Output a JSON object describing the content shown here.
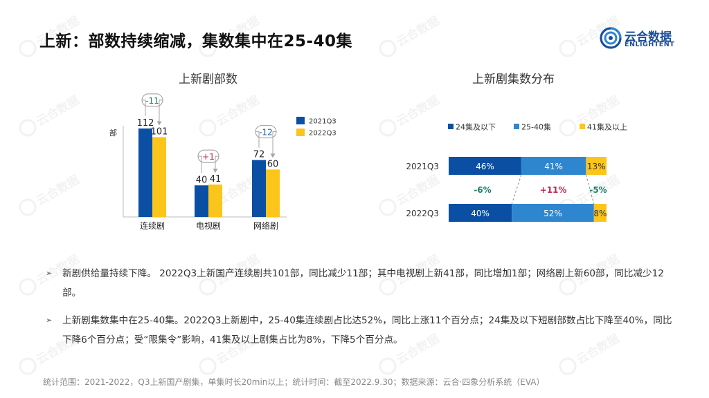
{
  "page": {
    "title": "上新：部数持续缩减，集数集中在25-40集",
    "footnote": "统计范围：2021-2022，Q3上新国产剧集，单集时长20min以上；统计时间：截至2022.9.30；数据来源：云合·四象分析系统（EVA）"
  },
  "logo": {
    "name": "云合数据",
    "sub": "ENLIGHTENT",
    "watermark_text": "云合数据"
  },
  "bullets": [
    "新剧供给量持续下降。 2022Q3上新国产连续剧共101部，同比减少11部；其中电视剧上新41部，同比增加1部；网络剧上新60部，同比减少12部。",
    "上新剧集数集中在25-40集。2022Q3上新剧中，25-40集连续剧占比达52%，同比上涨11个百分点；24集及以下短剧部数占比下降至40%，同比下降6个百分点；受“限集令”影响，41集及以上剧集占比为8%，下降5个百分点。"
  ],
  "chart_data": [
    {
      "type": "bar",
      "title": "上新剧部数",
      "ylabel": "部",
      "categories": [
        "连续剧",
        "电视剧",
        "网络剧"
      ],
      "series": [
        {
          "name": "2021Q3",
          "values": [
            112,
            40,
            72
          ],
          "color": "#0a4fa3"
        },
        {
          "name": "2022Q3",
          "values": [
            101,
            41,
            60
          ],
          "color": "#fcc51b"
        }
      ],
      "changes": [
        "-11",
        "+1",
        "-12"
      ],
      "change_colors": [
        "#1b7f6a",
        "#c0274d",
        "#1f5fa8"
      ],
      "ylim": [
        0,
        130
      ],
      "legend": "top-right"
    },
    {
      "type": "bar",
      "orientation": "horizontal",
      "stacked": true,
      "title": "上新剧集数分布",
      "categories": [
        "2021Q3",
        "2022Q3"
      ],
      "series": [
        {
          "name": "24集及以下",
          "values": [
            46,
            40
          ],
          "color": "#0a4fa3"
        },
        {
          "name": "25-40集",
          "values": [
            41,
            52
          ],
          "color": "#2e86cf"
        },
        {
          "name": "41集及以上",
          "values": [
            13,
            8
          ],
          "color": "#fcc51b"
        }
      ],
      "value_suffix": "%",
      "changes": [
        "-6%",
        "+11%",
        "-5%"
      ],
      "change_colors": [
        "#1b7f6a",
        "#c0274d",
        "#1b7f6a"
      ],
      "legend": "top"
    }
  ]
}
